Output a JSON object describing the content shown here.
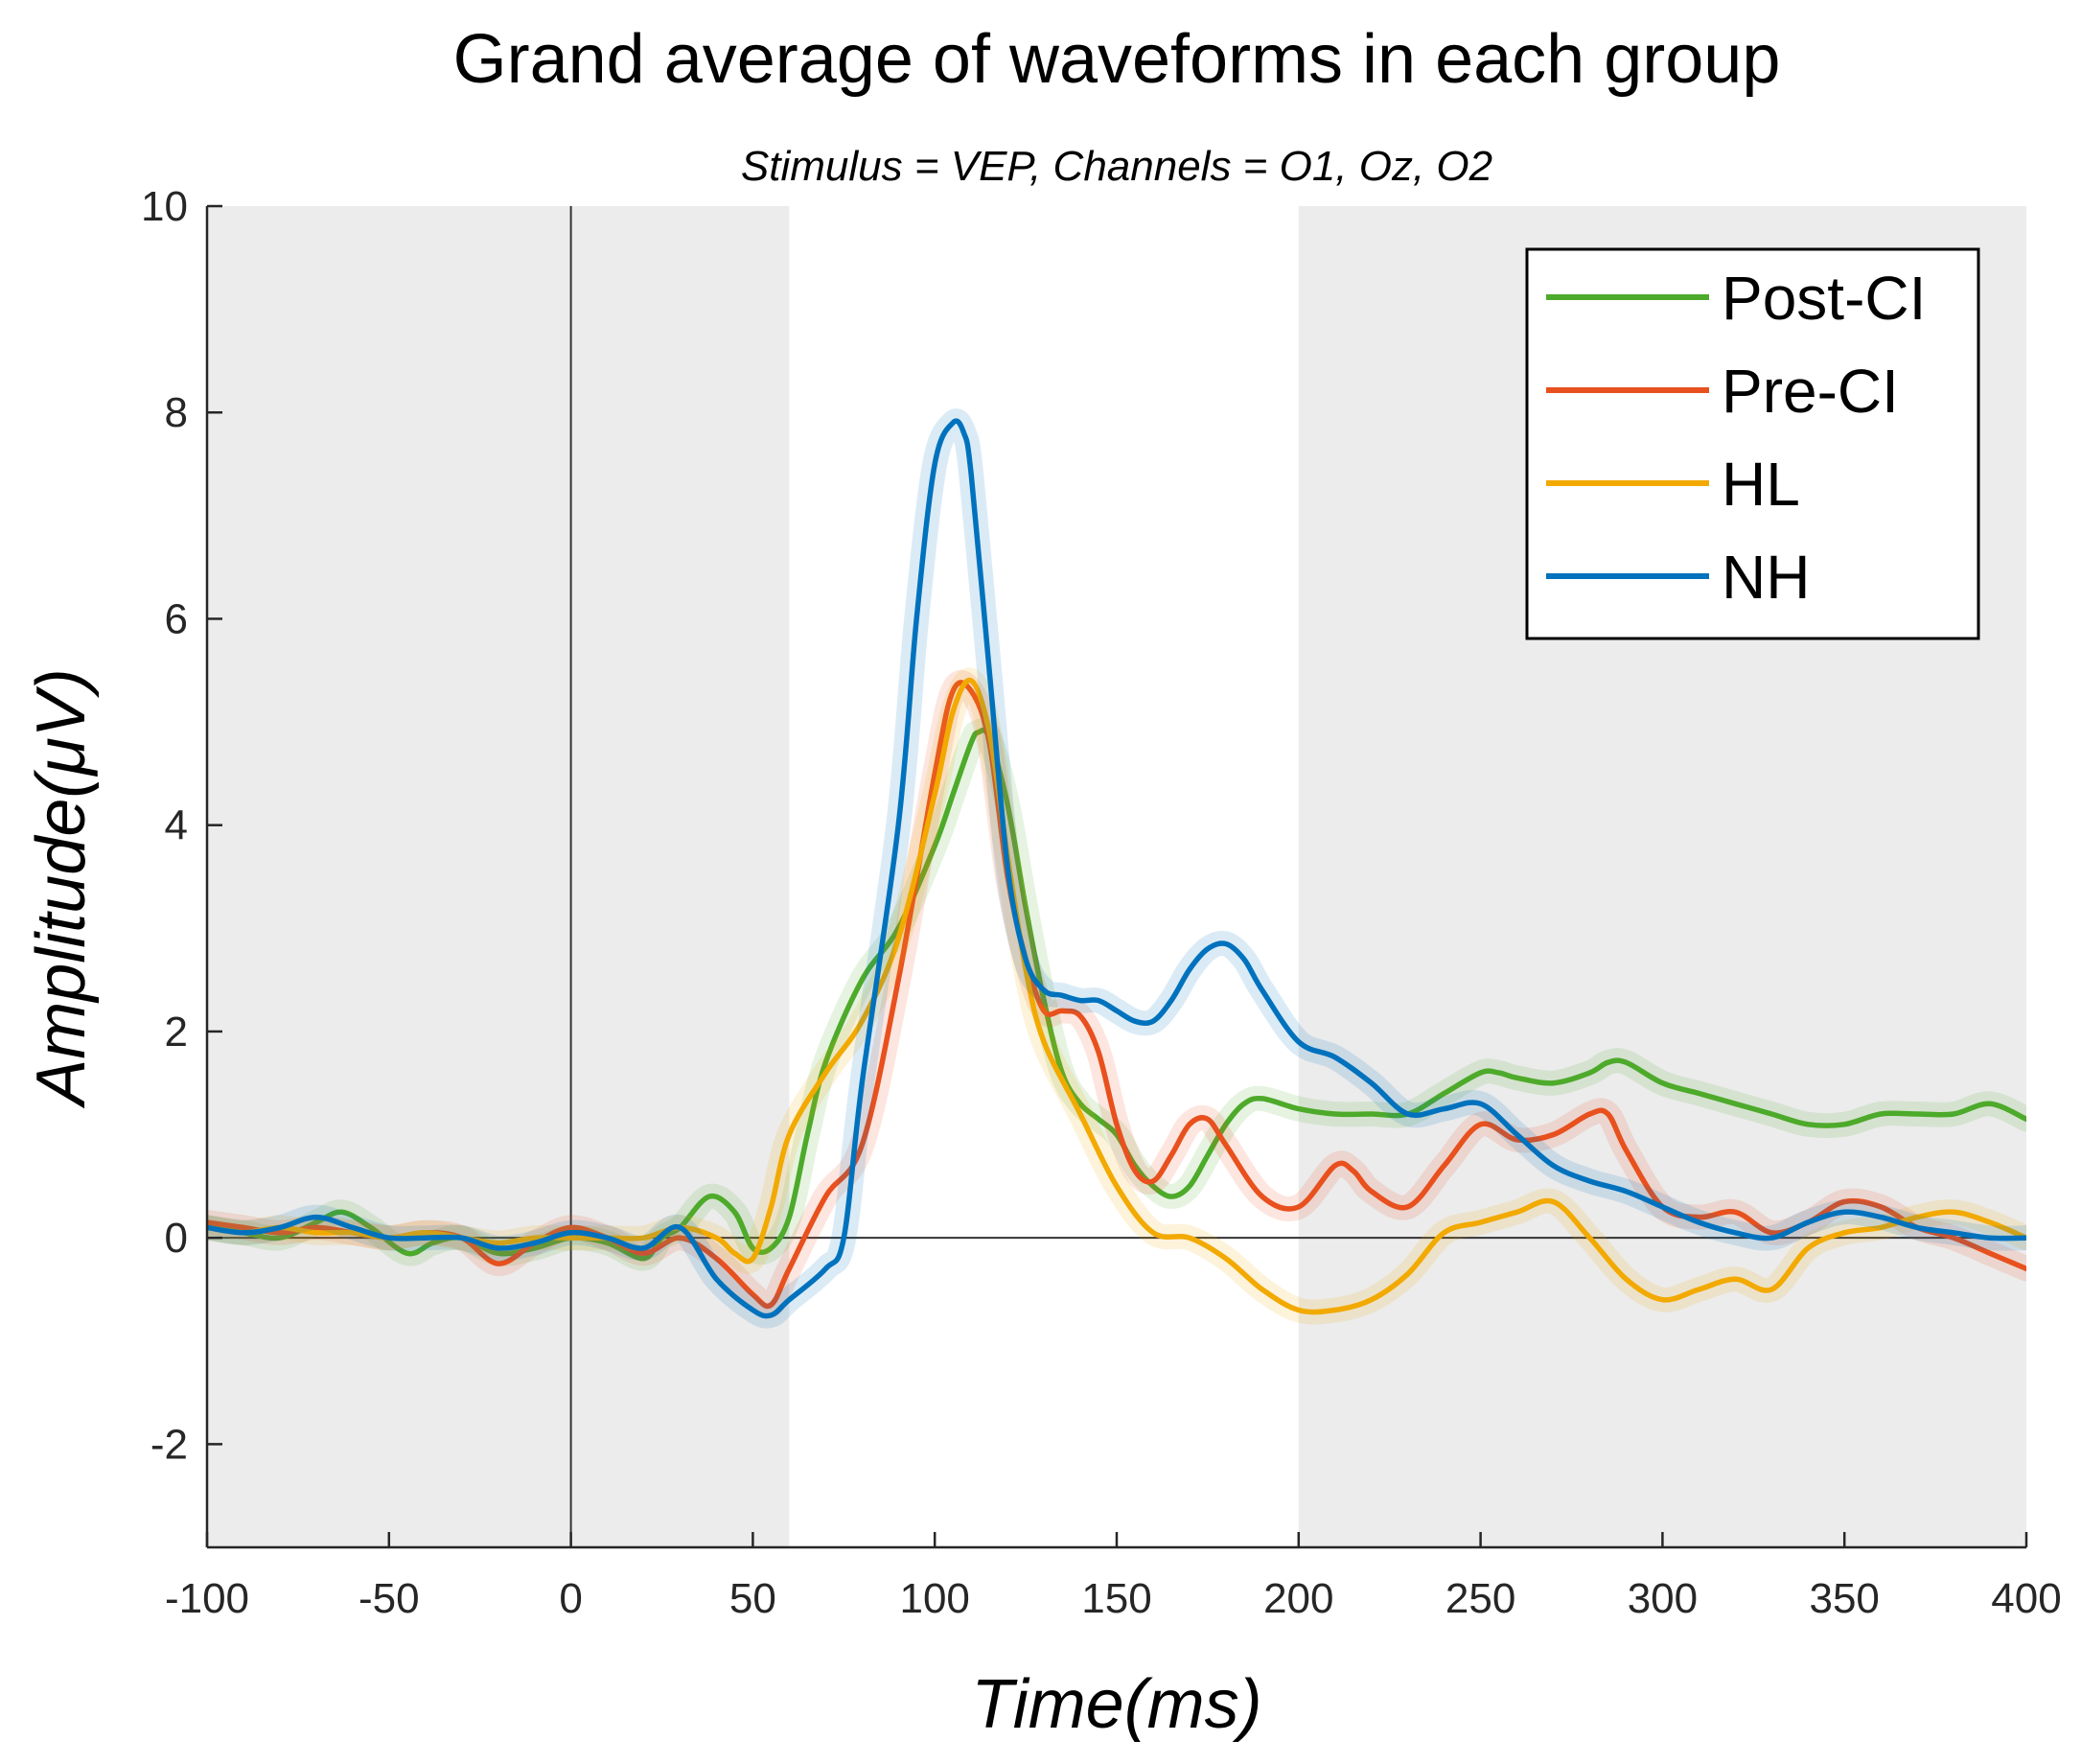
{
  "chart_data": {
    "type": "line",
    "title": "Grand average of waveforms in each group",
    "subtitle": "Stimulus = VEP, Channels = O1, Oz, O2",
    "xlabel": "Time(ms)",
    "ylabel": "Amplitude(μV)",
    "xlim": [
      -100,
      400
    ],
    "ylim": [
      -3,
      10
    ],
    "xticks": [
      -100,
      -50,
      0,
      50,
      100,
      150,
      200,
      250,
      300,
      350,
      400
    ],
    "yticks": [
      -2,
      0,
      2,
      4,
      6,
      8,
      10
    ],
    "shaded_regions": [
      {
        "from": -100,
        "to": 60,
        "color": "#ececec"
      },
      {
        "from": 200,
        "to": 400,
        "color": "#ececec"
      }
    ],
    "reference_lines": [
      {
        "axis": "x",
        "value": 0
      },
      {
        "axis": "y",
        "value": 0
      }
    ],
    "legend_position": "top-right",
    "series": [
      {
        "name": "Post-CI",
        "color": "#4daa2a",
        "x": [
          -100,
          -90,
          -80,
          -70,
          -63,
          -55,
          -45,
          -38,
          -30,
          -20,
          -10,
          0,
          10,
          20,
          25,
          30,
          38,
          45,
          50,
          55,
          60,
          65,
          70,
          80,
          90,
          100,
          105,
          110,
          112,
          115,
          120,
          125,
          130,
          135,
          140,
          145,
          150,
          155,
          160,
          165,
          170,
          175,
          180,
          185,
          190,
          200,
          210,
          220,
          230,
          240,
          250,
          255,
          260,
          270,
          280,
          285,
          290,
          300,
          310,
          320,
          330,
          340,
          350,
          360,
          370,
          380,
          390,
          400
        ],
        "y": [
          0.1,
          0.05,
          0.0,
          0.15,
          0.25,
          0.1,
          -0.15,
          -0.05,
          0.0,
          -0.15,
          -0.1,
          0.0,
          -0.05,
          -0.2,
          0.0,
          0.1,
          0.4,
          0.25,
          -0.1,
          -0.1,
          0.2,
          1.0,
          1.7,
          2.5,
          3.0,
          3.8,
          4.3,
          4.8,
          4.9,
          4.85,
          4.2,
          3.2,
          2.3,
          1.6,
          1.3,
          1.15,
          1.0,
          0.7,
          0.5,
          0.4,
          0.5,
          0.8,
          1.1,
          1.3,
          1.35,
          1.25,
          1.2,
          1.2,
          1.2,
          1.4,
          1.6,
          1.6,
          1.55,
          1.5,
          1.6,
          1.7,
          1.7,
          1.5,
          1.4,
          1.3,
          1.2,
          1.1,
          1.1,
          1.2,
          1.2,
          1.2,
          1.3,
          1.15
        ]
      },
      {
        "name": "Pre-CI",
        "color": "#e8501e",
        "x": [
          -100,
          -90,
          -80,
          -70,
          -60,
          -50,
          -40,
          -30,
          -20,
          -10,
          0,
          10,
          20,
          30,
          40,
          50,
          55,
          60,
          70,
          80,
          90,
          100,
          105,
          110,
          115,
          120,
          125,
          130,
          135,
          140,
          145,
          150,
          155,
          160,
          165,
          170,
          175,
          180,
          190,
          200,
          210,
          215,
          220,
          230,
          240,
          250,
          260,
          270,
          280,
          285,
          290,
          300,
          310,
          320,
          330,
          340,
          350,
          360,
          370,
          380,
          390,
          400
        ],
        "y": [
          0.15,
          0.1,
          0.05,
          0.1,
          0.05,
          0.0,
          0.05,
          0.0,
          -0.25,
          -0.05,
          0.1,
          0.0,
          -0.15,
          0.0,
          -0.2,
          -0.55,
          -0.65,
          -0.3,
          0.4,
          0.9,
          2.5,
          4.5,
          5.3,
          5.3,
          4.8,
          3.5,
          2.7,
          2.2,
          2.2,
          2.15,
          1.8,
          1.1,
          0.65,
          0.55,
          0.8,
          1.1,
          1.15,
          0.9,
          0.4,
          0.3,
          0.7,
          0.65,
          0.45,
          0.3,
          0.7,
          1.1,
          0.95,
          1.0,
          1.2,
          1.2,
          0.85,
          0.3,
          0.2,
          0.25,
          0.05,
          0.15,
          0.35,
          0.3,
          0.1,
          0.0,
          -0.15,
          -0.3
        ]
      },
      {
        "name": "HL",
        "color": "#f2a900",
        "x": [
          -100,
          -90,
          -80,
          -70,
          -60,
          -50,
          -40,
          -30,
          -20,
          -10,
          0,
          10,
          20,
          30,
          40,
          45,
          50,
          55,
          60,
          70,
          80,
          90,
          100,
          105,
          110,
          115,
          120,
          125,
          130,
          140,
          150,
          160,
          170,
          180,
          190,
          200,
          210,
          220,
          230,
          240,
          250,
          260,
          270,
          280,
          290,
          300,
          310,
          320,
          330,
          340,
          350,
          360,
          370,
          380,
          390,
          400
        ],
        "y": [
          0.1,
          0.05,
          0.1,
          0.05,
          0.05,
          0.0,
          0.05,
          0.0,
          -0.05,
          0.0,
          0.0,
          0.0,
          0.0,
          0.1,
          0.0,
          -0.15,
          -0.2,
          0.3,
          1.0,
          1.6,
          2.1,
          2.9,
          4.3,
          5.1,
          5.4,
          4.9,
          3.7,
          2.6,
          1.9,
          1.2,
          0.5,
          0.05,
          0.0,
          -0.2,
          -0.5,
          -0.7,
          -0.7,
          -0.6,
          -0.35,
          0.05,
          0.15,
          0.25,
          0.35,
          0.0,
          -0.4,
          -0.6,
          -0.5,
          -0.4,
          -0.5,
          -0.1,
          0.05,
          0.1,
          0.2,
          0.25,
          0.15,
          0.0
        ]
      },
      {
        "name": "NH",
        "color": "#0072bd",
        "x": [
          -100,
          -90,
          -80,
          -70,
          -60,
          -50,
          -40,
          -30,
          -20,
          -10,
          0,
          10,
          20,
          30,
          40,
          50,
          55,
          60,
          70,
          75,
          80,
          90,
          95,
          100,
          105,
          108,
          110,
          115,
          120,
          125,
          130,
          135,
          140,
          145,
          150,
          155,
          160,
          165,
          170,
          175,
          180,
          185,
          190,
          200,
          210,
          220,
          230,
          240,
          250,
          260,
          270,
          280,
          290,
          300,
          310,
          320,
          330,
          340,
          350,
          360,
          370,
          380,
          390,
          400
        ],
        "y": [
          0.1,
          0.05,
          0.1,
          0.2,
          0.1,
          0.0,
          0.0,
          0.0,
          -0.1,
          -0.05,
          0.05,
          0.0,
          -0.1,
          0.1,
          -0.4,
          -0.7,
          -0.75,
          -0.6,
          -0.3,
          0.0,
          1.5,
          4.0,
          6.0,
          7.5,
          7.9,
          7.8,
          7.4,
          5.5,
          3.6,
          2.7,
          2.4,
          2.35,
          2.3,
          2.3,
          2.2,
          2.1,
          2.1,
          2.3,
          2.6,
          2.8,
          2.85,
          2.7,
          2.4,
          1.9,
          1.75,
          1.5,
          1.2,
          1.25,
          1.3,
          1.0,
          0.7,
          0.55,
          0.45,
          0.3,
          0.15,
          0.05,
          0.0,
          0.15,
          0.25,
          0.2,
          0.1,
          0.05,
          0.0,
          0.0
        ]
      }
    ]
  }
}
